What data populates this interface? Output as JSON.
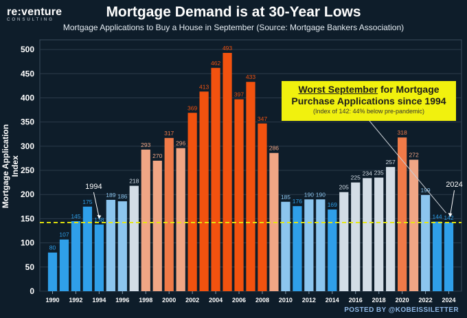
{
  "brand": {
    "name": "re:venture",
    "sub": "CONSULTING"
  },
  "footer": "POSTED BY @KOBEISSILETTER",
  "callout": {
    "line1_underlined": "Worst September",
    "line1_rest": " for Mortgage",
    "line2": "Purchase Applications since 1994",
    "line3": "(Index of 142: 44% below pre-pandemic)"
  },
  "colors": {
    "background": "#0e1d2a",
    "reference_line": "#e8e80c",
    "callout_bg": "#f1f10e"
  },
  "chart_data": {
    "type": "bar",
    "title": "Mortgage Demand is at 30-Year Lows",
    "subtitle": "Mortgage Applications to Buy a House in September (Source: Mortgage Bankers Association)",
    "xlabel": "",
    "ylabel": "Mortgage Application Index",
    "ylim": [
      0,
      520
    ],
    "yticks": [
      0,
      50,
      100,
      150,
      200,
      250,
      300,
      350,
      400,
      450,
      500
    ],
    "categories": [
      1990,
      1991,
      1992,
      1993,
      1994,
      1995,
      1996,
      1997,
      1998,
      1999,
      2000,
      2001,
      2002,
      2003,
      2004,
      2005,
      2006,
      2007,
      2008,
      2009,
      2010,
      2011,
      2012,
      2013,
      2014,
      2015,
      2016,
      2017,
      2018,
      2019,
      2020,
      2021,
      2022,
      2023,
      2024
    ],
    "xtick_labels": [
      "1990",
      "1992",
      "1994",
      "1996",
      "1998",
      "2000",
      "2002",
      "2004",
      "2006",
      "2008",
      "2010",
      "2012",
      "2014",
      "2016",
      "2018",
      "2020",
      "2022",
      "2024"
    ],
    "values": [
      80,
      107,
      145,
      175,
      138,
      189,
      186,
      218,
      293,
      270,
      317,
      296,
      369,
      413,
      462,
      493,
      397,
      433,
      347,
      286,
      185,
      176,
      190,
      190,
      169,
      205,
      225,
      234,
      235,
      257,
      318,
      272,
      199,
      144,
      142
    ],
    "reference_line": 142,
    "annotations": [
      {
        "text": "1994",
        "x": 1994,
        "y": 138
      },
      {
        "text": "2024",
        "x": 2024,
        "y": 142
      }
    ],
    "grid": true
  }
}
